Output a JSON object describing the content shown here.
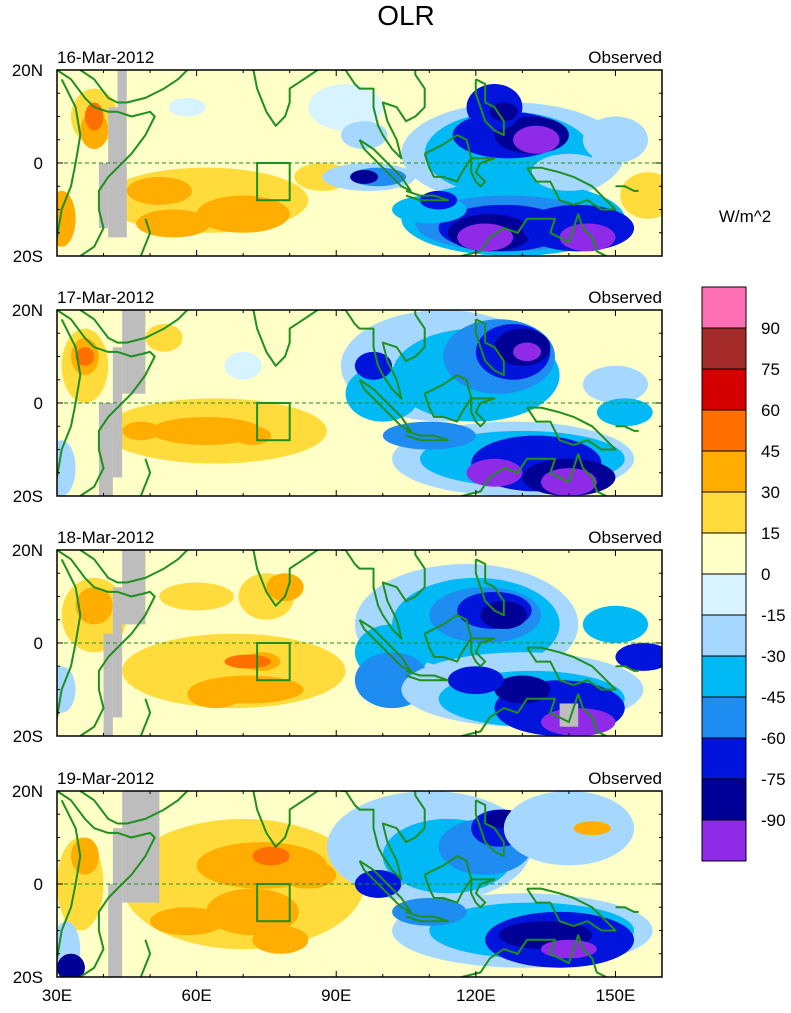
{
  "title": "OLR",
  "units": "W/m^2",
  "panels": [
    {
      "date": "16-Mar-2012",
      "type": "Observed"
    },
    {
      "date": "17-Mar-2012",
      "type": "Observed"
    },
    {
      "date": "18-Mar-2012",
      "type": "Observed"
    },
    {
      "date": "19-Mar-2012",
      "type": "Observed"
    }
  ],
  "lat_labels": [
    "20N",
    "0",
    "20S"
  ],
  "lon_labels": [
    "30E",
    "60E",
    "90E",
    "120E",
    "150E"
  ],
  "colorbar": {
    "labels": [
      "90",
      "75",
      "60",
      "45",
      "30",
      "15",
      "0",
      "-15",
      "-30",
      "-45",
      "-60",
      "-75",
      "-90"
    ],
    "colors": [
      "#ff6fb4",
      "#a52a2a",
      "#d40000",
      "#ff7000",
      "#ffad00",
      "#ffdc3c",
      "#ffffc8",
      "#d6f3ff",
      "#a6d8ff",
      "#00b9f5",
      "#1e8cf0",
      "#0014dc",
      "#000096",
      "#8f2be8"
    ]
  },
  "colors": {
    "coast": "#1f8f1f",
    "equator": "#1f8f1f",
    "missing": "#bdbdbd",
    "neutral": "#ffffc8"
  }
}
